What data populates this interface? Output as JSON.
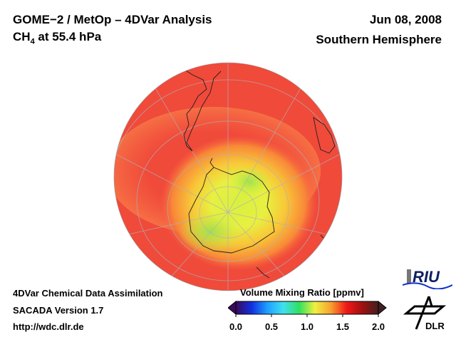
{
  "header": {
    "title_line1": "GOME−2 / MetOp – 4DVar Analysis",
    "species": "CH",
    "species_sub": "4",
    "level_text": " at 55.4 hPa",
    "date": "Jun 08, 2008",
    "region": "Southern Hemisphere"
  },
  "footer": {
    "line1": "4DVar Chemical Data Assimilation",
    "line2": "SACADA Version 1.7",
    "line3": "http://wdc.dlr.de"
  },
  "colorbar": {
    "title": "Volume Mixing Ratio [ppmv]",
    "ticks": [
      "0.0",
      "0.5",
      "1.0",
      "1.5",
      "2.0"
    ],
    "range": [
      0.0,
      2.0
    ],
    "colors": [
      "#3a0a5a",
      "#1030e0",
      "#20a0ff",
      "#40e0f0",
      "#30e060",
      "#f0f040",
      "#f8a030",
      "#f01818",
      "#a01010",
      "#402020"
    ]
  },
  "logos": {
    "riu": "RIU",
    "dlr": "DLR"
  }
}
